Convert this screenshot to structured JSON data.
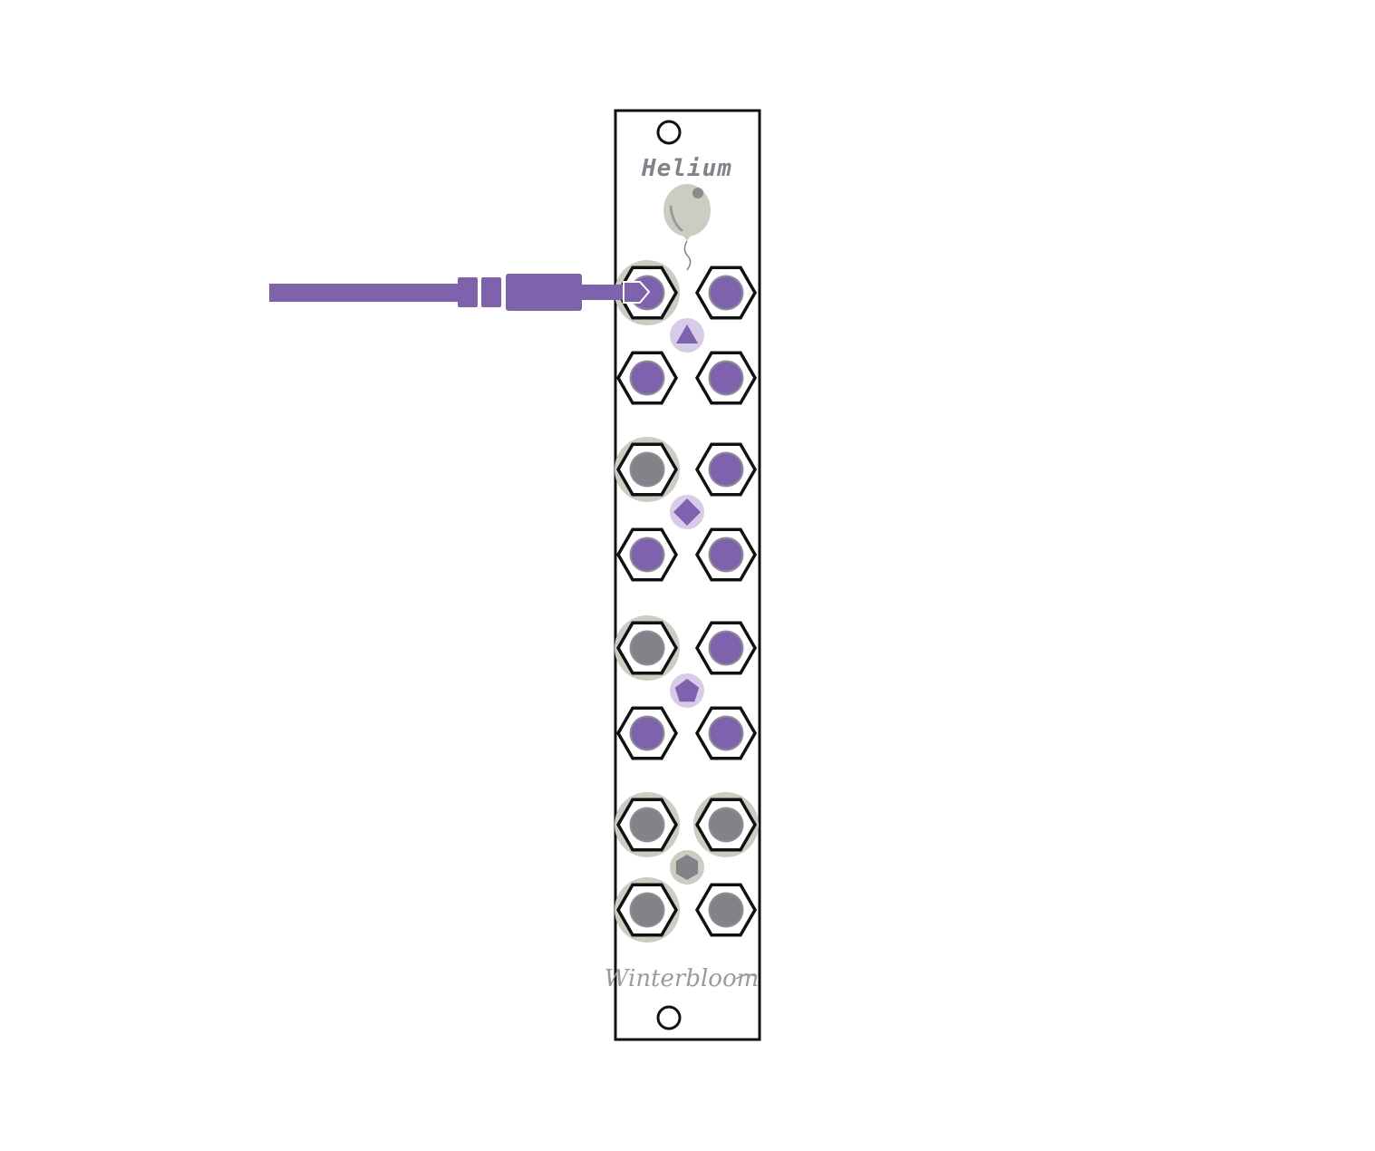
{
  "module": {
    "name": "Helium",
    "brand": "Winterbloom"
  },
  "colors": {
    "panel": "#ffffff",
    "outline": "#111111",
    "accent": "#7e62ad",
    "accent_light": "#d6cce8",
    "inactive": "#828289",
    "halo": "#cdccc2",
    "text": "#828289"
  },
  "icons": {
    "balloon": "balloon-icon",
    "group_symbols": [
      "triangle-icon",
      "diamond-icon",
      "pentagon-icon",
      "hexagon-icon"
    ]
  },
  "groups": [
    {
      "symbol": "triangle",
      "active": true,
      "jacks": [
        {
          "position": "top-left",
          "state": "patched"
        },
        {
          "position": "top-right",
          "state": "active"
        },
        {
          "position": "bottom-left",
          "state": "active"
        },
        {
          "position": "bottom-right",
          "state": "active"
        }
      ]
    },
    {
      "symbol": "diamond",
      "active": true,
      "jacks": [
        {
          "position": "top-left",
          "state": "input-empty"
        },
        {
          "position": "top-right",
          "state": "active"
        },
        {
          "position": "bottom-left",
          "state": "active"
        },
        {
          "position": "bottom-right",
          "state": "active"
        }
      ]
    },
    {
      "symbol": "pentagon",
      "active": true,
      "jacks": [
        {
          "position": "top-left",
          "state": "input-empty"
        },
        {
          "position": "top-right",
          "state": "active"
        },
        {
          "position": "bottom-left",
          "state": "active"
        },
        {
          "position": "bottom-right",
          "state": "active"
        }
      ]
    },
    {
      "symbol": "hexagon",
      "active": false,
      "jacks": [
        {
          "position": "top-left",
          "state": "input-empty"
        },
        {
          "position": "top-right",
          "state": "input-empty"
        },
        {
          "position": "bottom-left",
          "state": "input-empty"
        },
        {
          "position": "bottom-right",
          "state": "inactive"
        }
      ]
    }
  ],
  "cable": {
    "color": "#7e62ad",
    "connected_to": "triangle-top-left"
  }
}
